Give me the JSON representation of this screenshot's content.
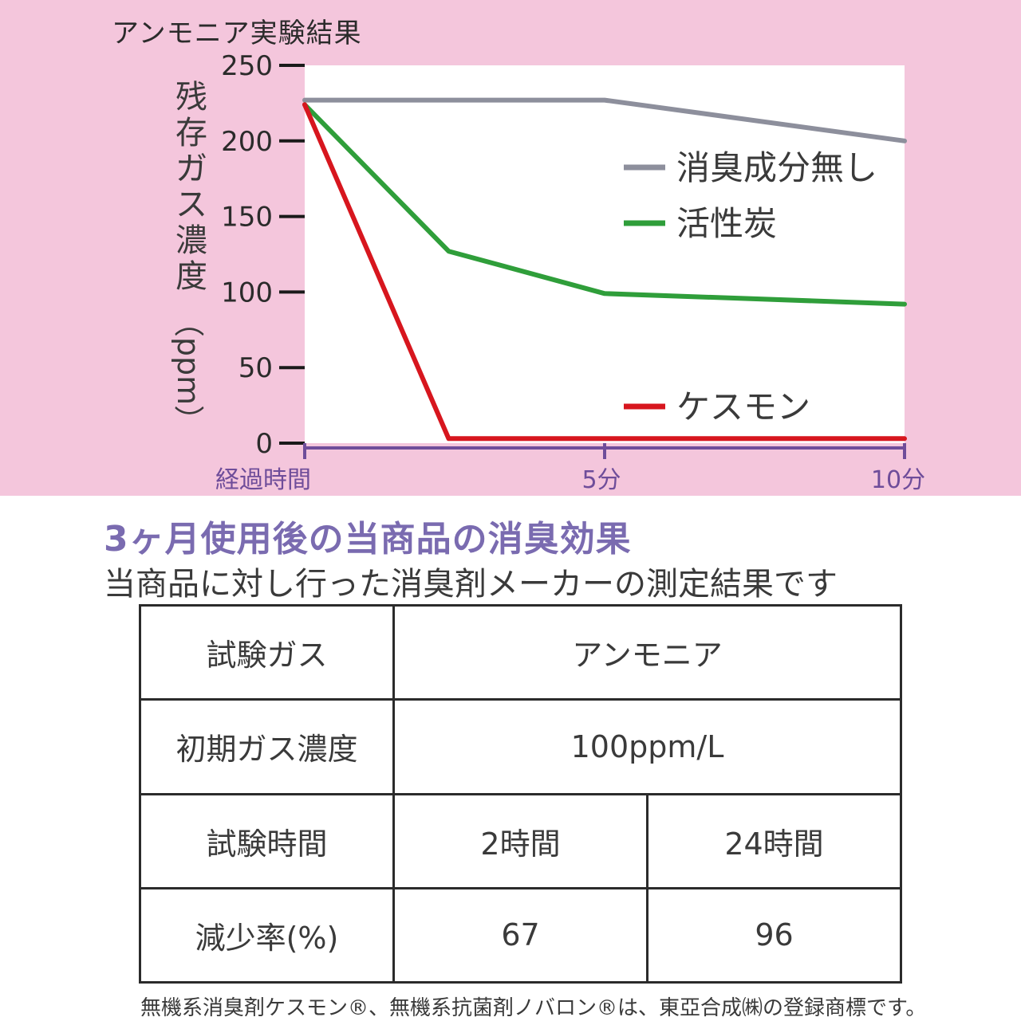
{
  "chart_data": {
    "type": "line",
    "title": "アンモニア実験結果",
    "ylabel": "残存ガス濃度",
    "ylabel_unit": "（ppm）",
    "xlabel": "経過時間",
    "ylim": [
      0,
      250
    ],
    "yticks": [
      0,
      50,
      100,
      150,
      200,
      250
    ],
    "xlim": [
      0,
      10
    ],
    "xticks": [
      {
        "value": 0,
        "label": "経過時間"
      },
      {
        "value": 5,
        "label": "5分"
      },
      {
        "value": 10,
        "label": "10分"
      }
    ],
    "legend_position": "right",
    "series": [
      {
        "name": "消臭成分無し",
        "color": "#8d8f9c",
        "x": [
          0,
          5,
          10
        ],
        "y": [
          227,
          227,
          200
        ]
      },
      {
        "name": "活性炭",
        "color": "#2f9e3a",
        "x": [
          0,
          2.4,
          5,
          10
        ],
        "y": [
          224,
          127,
          99,
          92
        ]
      },
      {
        "name": "ケスモン",
        "color": "#d7161e",
        "x": [
          0,
          2.4,
          5,
          10
        ],
        "y": [
          224,
          3,
          3,
          3
        ]
      }
    ]
  },
  "section": {
    "title": "3ヶ月使用後の当商品の消臭効果",
    "subtitle": "当商品に対し行った消臭剤メーカーの測定結果です"
  },
  "table": {
    "rows": [
      {
        "label": "試験ガス",
        "values": [
          "アンモニア"
        ]
      },
      {
        "label": "初期ガス濃度",
        "values": [
          "100ppm/L"
        ]
      },
      {
        "label": "試験時間",
        "values": [
          "2時間",
          "24時間"
        ]
      },
      {
        "label": "減少率(%)",
        "values": [
          "67",
          "96"
        ]
      }
    ]
  },
  "footnote": "無機系消臭剤ケスモン®、無機系抗菌剤ノバロン®は、東亞合成㈱の登録商標です。"
}
